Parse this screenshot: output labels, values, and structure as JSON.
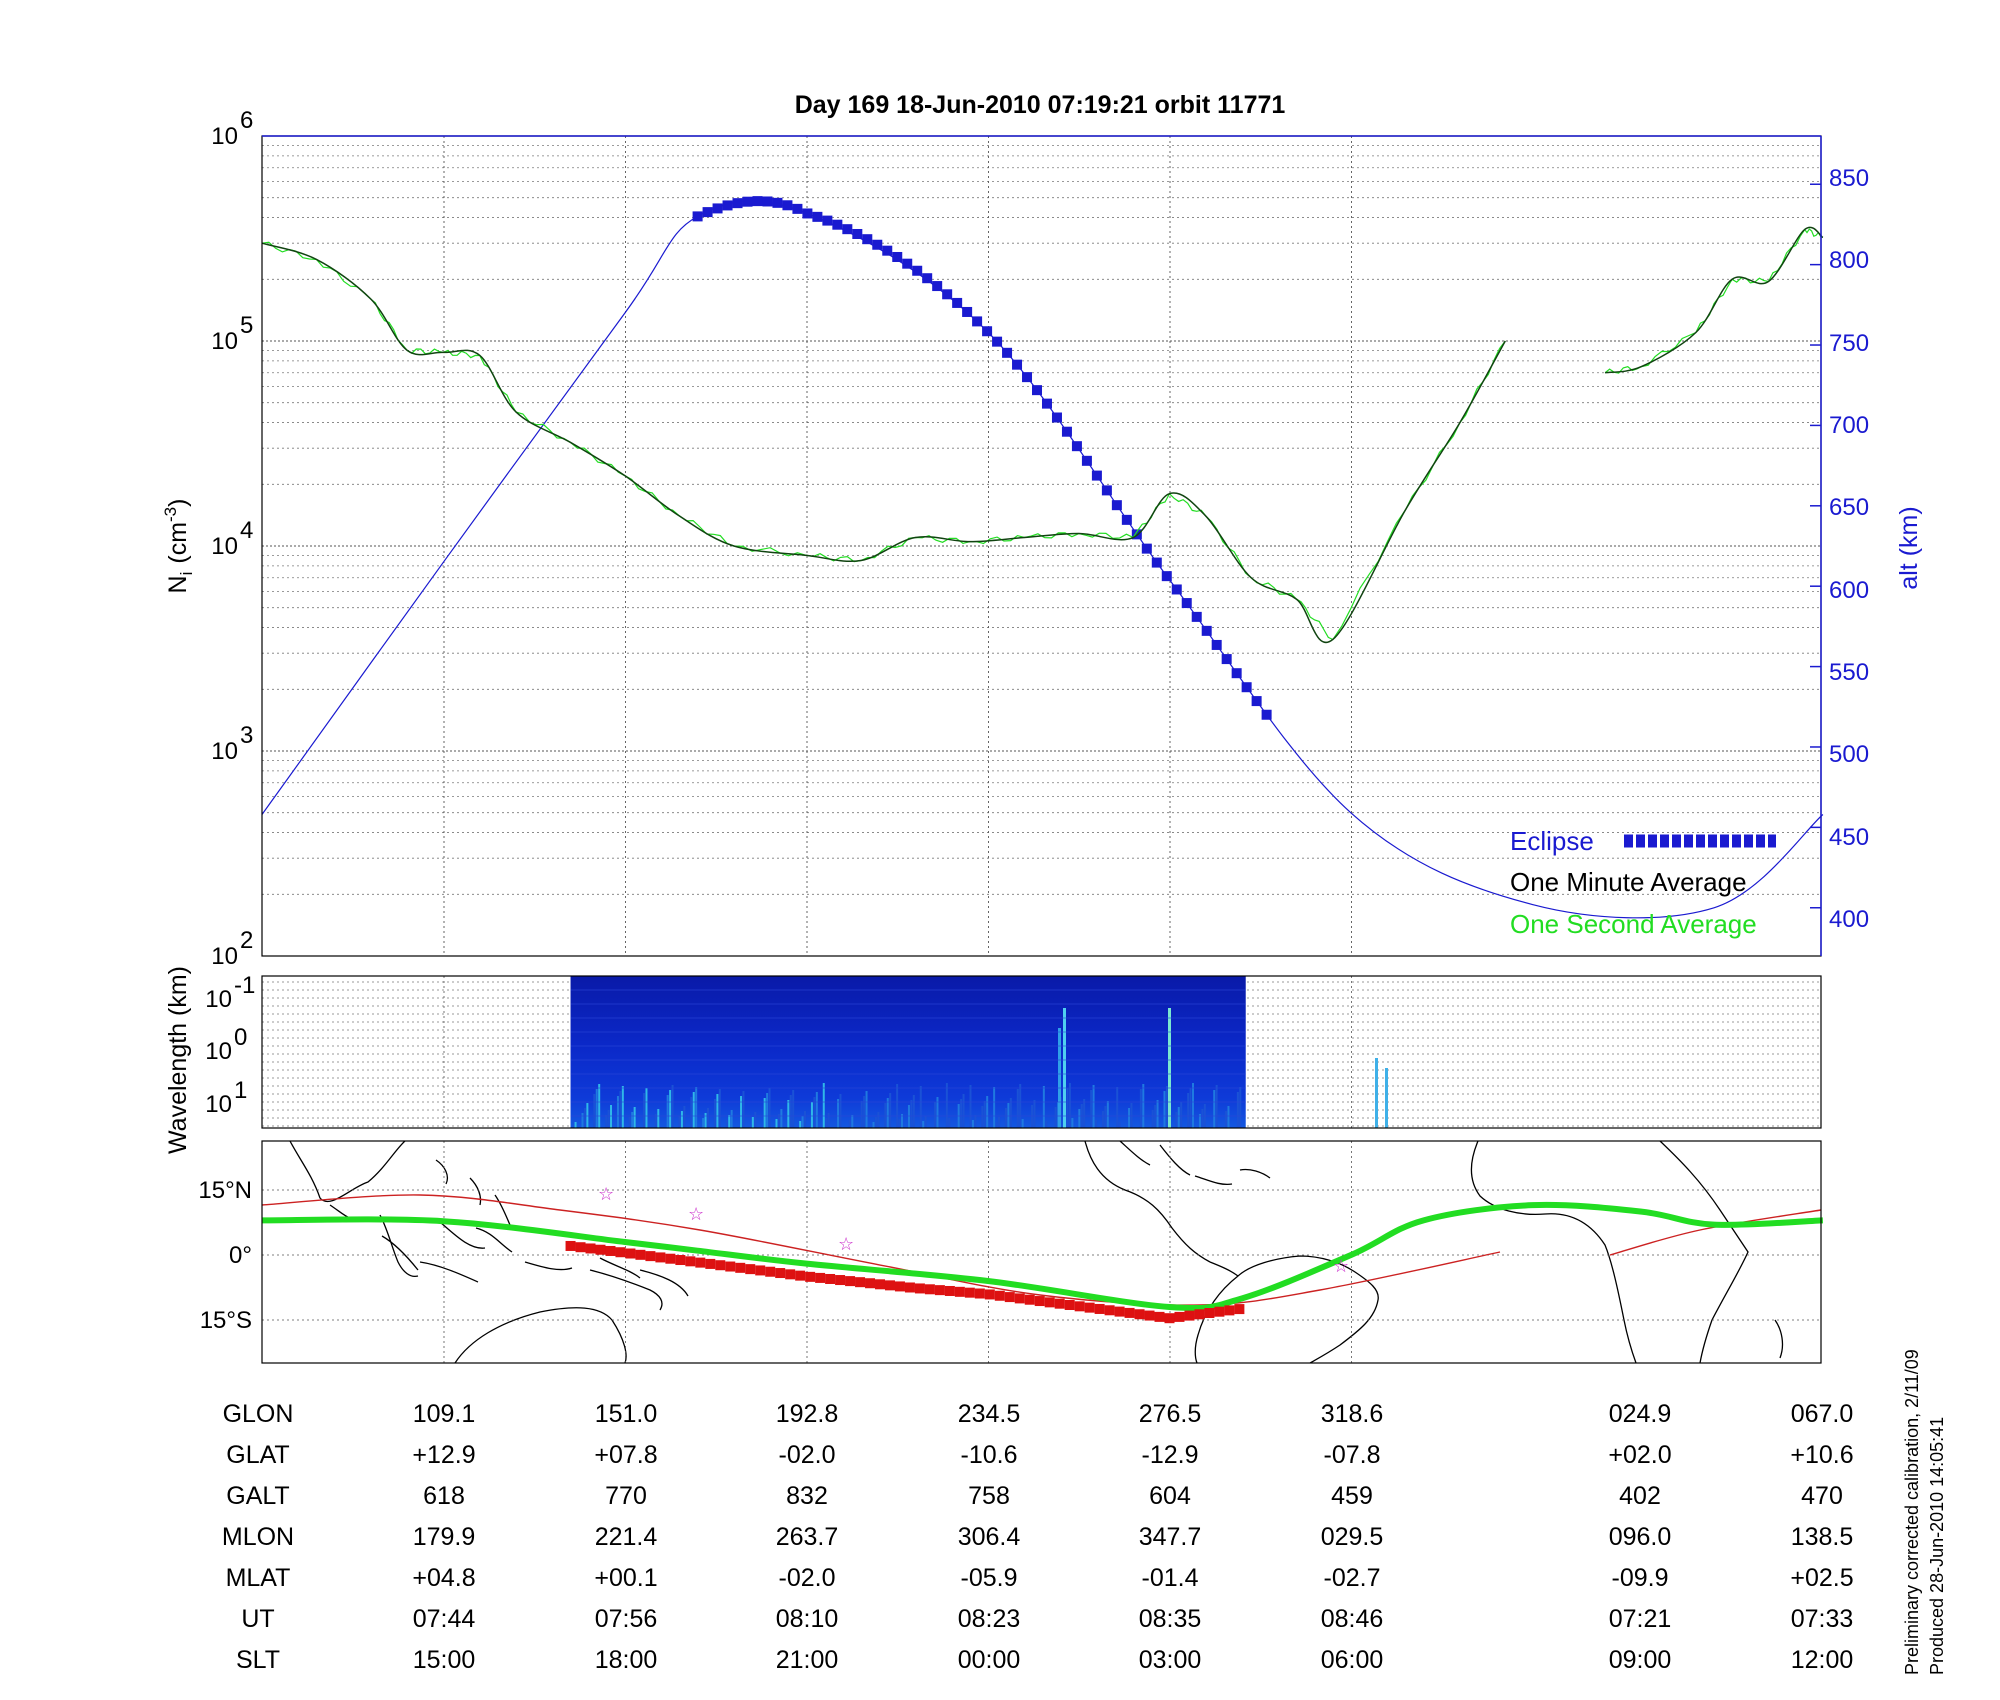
{
  "title": "Day 169  18-Jun-2010 07:19:21   orbit 11771",
  "panel_top": {
    "y_left_label": "N",
    "y_left_label_sub": "i",
    "y_left_unit": "(cm",
    "y_left_unit_sup": "-3",
    "y_left_unit_end": ")",
    "y_right_label": "alt (km)",
    "y_left_ticks": [
      {
        "base": "10",
        "exp": "6"
      },
      {
        "base": "10",
        "exp": "5"
      },
      {
        "base": "10",
        "exp": "4"
      },
      {
        "base": "10",
        "exp": "3"
      },
      {
        "base": "10",
        "exp": "2"
      }
    ],
    "y_right_ticks": [
      "850",
      "800",
      "750",
      "700",
      "650",
      "600",
      "550",
      "500",
      "450",
      "400"
    ],
    "legend": [
      {
        "label": "Eclipse",
        "color": "#1a1ad0"
      },
      {
        "label": "One Minute Average",
        "color": "#000000"
      },
      {
        "label": "One Second Average",
        "color": "#22dd22"
      }
    ]
  },
  "panel_mid": {
    "y_label": "Wavelength (km)",
    "y_ticks": [
      {
        "base": "10",
        "exp": "-1"
      },
      {
        "base": "10",
        "exp": "0"
      },
      {
        "base": "10",
        "exp": "1"
      }
    ]
  },
  "panel_map": {
    "y_ticks": [
      "15°N",
      "0°",
      "15°S"
    ]
  },
  "table": {
    "rows": [
      {
        "label": "GLON",
        "values": [
          "109.1",
          "151.0",
          "192.8",
          "234.5",
          "276.5",
          "318.6",
          "024.9",
          "067.0"
        ]
      },
      {
        "label": "GLAT",
        "values": [
          "+12.9",
          "+07.8",
          "-02.0",
          "-10.6",
          "-12.9",
          "-07.8",
          "+02.0",
          "+10.6"
        ]
      },
      {
        "label": "GALT",
        "values": [
          "618",
          "770",
          "832",
          "758",
          "604",
          "459",
          "402",
          "470"
        ]
      },
      {
        "label": "MLON",
        "values": [
          "179.9",
          "221.4",
          "263.7",
          "306.4",
          "347.7",
          "029.5",
          "096.0",
          "138.5"
        ]
      },
      {
        "label": "MLAT",
        "values": [
          "+04.8",
          "+00.1",
          "-02.0",
          "-05.9",
          "-01.4",
          "-02.7",
          "-09.9",
          "+02.5"
        ]
      },
      {
        "label": "UT",
        "values": [
          "07:44",
          "07:56",
          "08:10",
          "08:23",
          "08:35",
          "08:46",
          "07:21",
          "07:33"
        ]
      },
      {
        "label": "SLT",
        "values": [
          "15:00",
          "18:00",
          "21:00",
          "00:00",
          "03:00",
          "06:00",
          "09:00",
          "12:00"
        ]
      }
    ]
  },
  "side_note": {
    "line1": "Preliminary corrected calibration, 2/11/09",
    "line2": "Produced 28-Jun-2010 14:05:41"
  },
  "colors": {
    "altitude": "#1a1ad0",
    "density_minute": "#000000",
    "density_second": "#22dd22",
    "ground_track": "#22dd22",
    "dip_equator": "#cc2222",
    "eclipse_track": "#dd1111",
    "star_marker": "#cc33cc"
  },
  "chart_data": [
    {
      "type": "line",
      "series_kind": "altitude",
      "x_index_range": [
        0,
        8.6
      ],
      "ylim": [
        370,
        880
      ],
      "x": [
        0,
        1,
        2,
        2.4,
        3,
        4,
        5,
        6,
        7,
        8,
        8.6
      ],
      "y": [
        458,
        615,
        770,
        830,
        832,
        758,
        604,
        459,
        402,
        400,
        458
      ],
      "eclipse_interval": [
        2.4,
        5.55
      ]
    },
    {
      "type": "line",
      "series_kind": "density",
      "x_index_range": [
        0,
        8.6
      ],
      "yscale": "log",
      "ylim": [
        100,
        1000000
      ],
      "x": [
        0,
        0.3,
        0.6,
        0.8,
        1.0,
        1.2,
        1.4,
        1.7,
        2.0,
        2.3,
        2.6,
        3.0,
        3.3,
        3.6,
        3.9,
        4.2,
        4.5,
        4.8,
        5.0,
        5.2,
        5.45,
        5.7,
        5.9,
        6.3,
        6.6,
        6.85
      ],
      "y": [
        300000,
        250000,
        160000,
        90000,
        88000,
        85000,
        45000,
        32000,
        22000,
        14000,
        10000,
        9000,
        8500,
        11000,
        10500,
        11000,
        11500,
        11000,
        18000,
        14000,
        7000,
        5500,
        3500,
        15000,
        40000,
        100000
      ],
      "x2": [
        7.4,
        7.6,
        7.9,
        8.1,
        8.3,
        8.5,
        8.6
      ],
      "y2": [
        70000,
        75000,
        110000,
        200000,
        195000,
        350000,
        320000
      ]
    },
    {
      "type": "heatmap",
      "series_kind": "wavelength_spectrogram",
      "x_index_range_filled": [
        1.7,
        5.42
      ],
      "yscale": "log"
    },
    {
      "type": "line",
      "series_kind": "ground_track_map",
      "x": [
        0,
        1,
        2,
        2.4,
        3,
        4,
        5,
        5.4,
        6,
        6.4,
        7,
        7.6,
        8,
        8.6
      ],
      "y": [
        8,
        7.8,
        3,
        1,
        -2,
        -6,
        -12,
        -10,
        0,
        8,
        11.5,
        10,
        7,
        8
      ]
    }
  ]
}
